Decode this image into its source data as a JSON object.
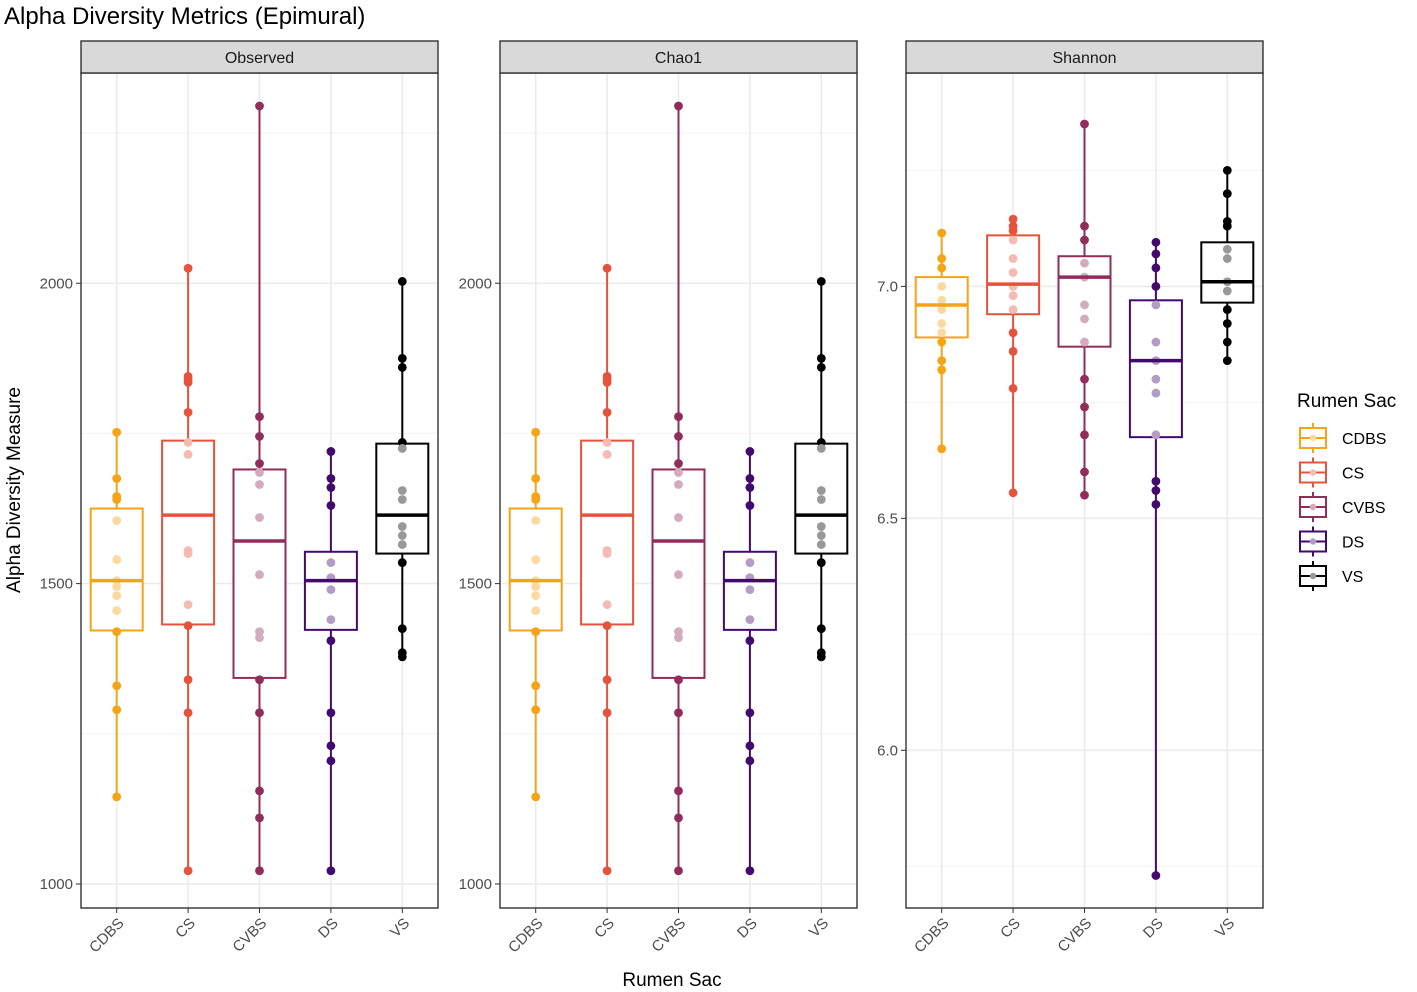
{
  "chart_data": {
    "type": "boxplot",
    "title": "Alpha Diversity Metrics (Epimural)",
    "xlabel": "Rumen Sac",
    "ylabel": "Alpha Diversity Measure",
    "categories": [
      "CDBS",
      "CS",
      "CVBS",
      "DS",
      "VS"
    ],
    "colors": {
      "CDBS": "#f6a316",
      "CS": "#e5533d",
      "CVBS": "#902d5a",
      "DS": "#430a6e",
      "VS": "#000000"
    },
    "legend": {
      "title": "Rumen Sac",
      "entries": [
        "CDBS",
        "CS",
        "CVBS",
        "DS",
        "VS"
      ],
      "position": "right"
    },
    "panels": [
      {
        "name": "Observed",
        "ylim": [
          960,
          2350
        ],
        "ticks": [
          1000,
          1500,
          2000
        ],
        "tick_labels": [
          "1000",
          "1500",
          "2000"
        ],
        "boxes": [
          {
            "group": "CDBS",
            "q1": 1422,
            "median": 1505,
            "q3": 1625
          },
          {
            "group": "CS",
            "q1": 1432,
            "median": 1614,
            "q3": 1738
          },
          {
            "group": "CVBS",
            "q1": 1343,
            "median": 1571,
            "q3": 1690
          },
          {
            "group": "DS",
            "q1": 1423,
            "median": 1505,
            "q3": 1553
          },
          {
            "group": "VS",
            "q1": 1550,
            "median": 1614,
            "q3": 1733
          }
        ],
        "points": {
          "CDBS": [
            1752,
            1675,
            1645,
            1640,
            1605,
            1540,
            1505,
            1495,
            1480,
            1455,
            1420,
            1330,
            1290,
            1145
          ],
          "CS": [
            2025,
            1845,
            1840,
            1835,
            1785,
            1735,
            1715,
            1555,
            1550,
            1465,
            1430,
            1340,
            1285,
            1022
          ],
          "CVBS": [
            2295,
            1778,
            1745,
            1700,
            1685,
            1665,
            1610,
            1515,
            1420,
            1410,
            1340,
            1285,
            1155,
            1110,
            1022
          ],
          "DS": [
            1720,
            1675,
            1660,
            1630,
            1535,
            1510,
            1490,
            1440,
            1405,
            1285,
            1230,
            1205,
            1022
          ],
          "VS": [
            2003,
            1875,
            1860,
            1735,
            1725,
            1655,
            1640,
            1595,
            1580,
            1565,
            1535,
            1425,
            1385,
            1378
          ]
        }
      },
      {
        "name": "Chao1",
        "ylim": [
          960,
          2350
        ],
        "ticks": [
          1000,
          1500,
          2000
        ],
        "tick_labels": [
          "1000",
          "1500",
          "2000"
        ],
        "boxes": [
          {
            "group": "CDBS",
            "q1": 1422,
            "median": 1505,
            "q3": 1625
          },
          {
            "group": "CS",
            "q1": 1432,
            "median": 1614,
            "q3": 1738
          },
          {
            "group": "CVBS",
            "q1": 1343,
            "median": 1571,
            "q3": 1690
          },
          {
            "group": "DS",
            "q1": 1423,
            "median": 1505,
            "q3": 1553
          },
          {
            "group": "VS",
            "q1": 1550,
            "median": 1614,
            "q3": 1733
          }
        ],
        "points": {
          "CDBS": [
            1752,
            1675,
            1645,
            1640,
            1605,
            1540,
            1505,
            1495,
            1480,
            1455,
            1420,
            1330,
            1290,
            1145
          ],
          "CS": [
            2025,
            1845,
            1840,
            1835,
            1785,
            1735,
            1715,
            1555,
            1550,
            1465,
            1430,
            1340,
            1285,
            1022
          ],
          "CVBS": [
            2295,
            1778,
            1745,
            1700,
            1685,
            1665,
            1610,
            1515,
            1420,
            1410,
            1340,
            1285,
            1155,
            1110,
            1022
          ],
          "DS": [
            1720,
            1675,
            1660,
            1630,
            1535,
            1510,
            1490,
            1440,
            1405,
            1285,
            1230,
            1205,
            1022
          ],
          "VS": [
            2003,
            1875,
            1860,
            1735,
            1725,
            1655,
            1640,
            1595,
            1580,
            1565,
            1535,
            1425,
            1385,
            1378
          ]
        }
      },
      {
        "name": "Shannon",
        "ylim": [
          5.66,
          7.46
        ],
        "ticks": [
          6.0,
          6.5,
          7.0
        ],
        "tick_labels": [
          "6.0",
          "6.5",
          "7.0"
        ],
        "boxes": [
          {
            "group": "CDBS",
            "q1": 6.89,
            "median": 6.96,
            "q3": 7.02
          },
          {
            "group": "CS",
            "q1": 6.94,
            "median": 7.005,
            "q3": 7.11
          },
          {
            "group": "CVBS",
            "q1": 6.87,
            "median": 7.02,
            "q3": 7.065
          },
          {
            "group": "DS",
            "q1": 6.675,
            "median": 6.84,
            "q3": 6.97
          },
          {
            "group": "VS",
            "q1": 6.965,
            "median": 7.01,
            "q3": 7.095
          }
        ],
        "points": {
          "CDBS": [
            7.115,
            7.06,
            7.04,
            7.0,
            6.97,
            6.95,
            6.92,
            6.9,
            6.88,
            6.84,
            6.82,
            6.65
          ],
          "CS": [
            7.145,
            7.13,
            7.12,
            7.1,
            7.06,
            7.03,
            7.0,
            6.98,
            6.95,
            6.9,
            6.86,
            6.78,
            6.555
          ],
          "CVBS": [
            7.35,
            7.13,
            7.1,
            7.05,
            7.02,
            6.96,
            6.93,
            6.88,
            6.8,
            6.74,
            6.68,
            6.6,
            6.55
          ],
          "DS": [
            7.095,
            7.07,
            7.04,
            7.0,
            6.96,
            6.88,
            6.84,
            6.8,
            6.77,
            6.68,
            6.58,
            6.56,
            6.53,
            5.73
          ],
          "VS": [
            7.25,
            7.2,
            7.14,
            7.13,
            7.08,
            7.06,
            7.01,
            6.99,
            6.95,
            6.92,
            6.88,
            6.84
          ]
        }
      }
    ]
  }
}
